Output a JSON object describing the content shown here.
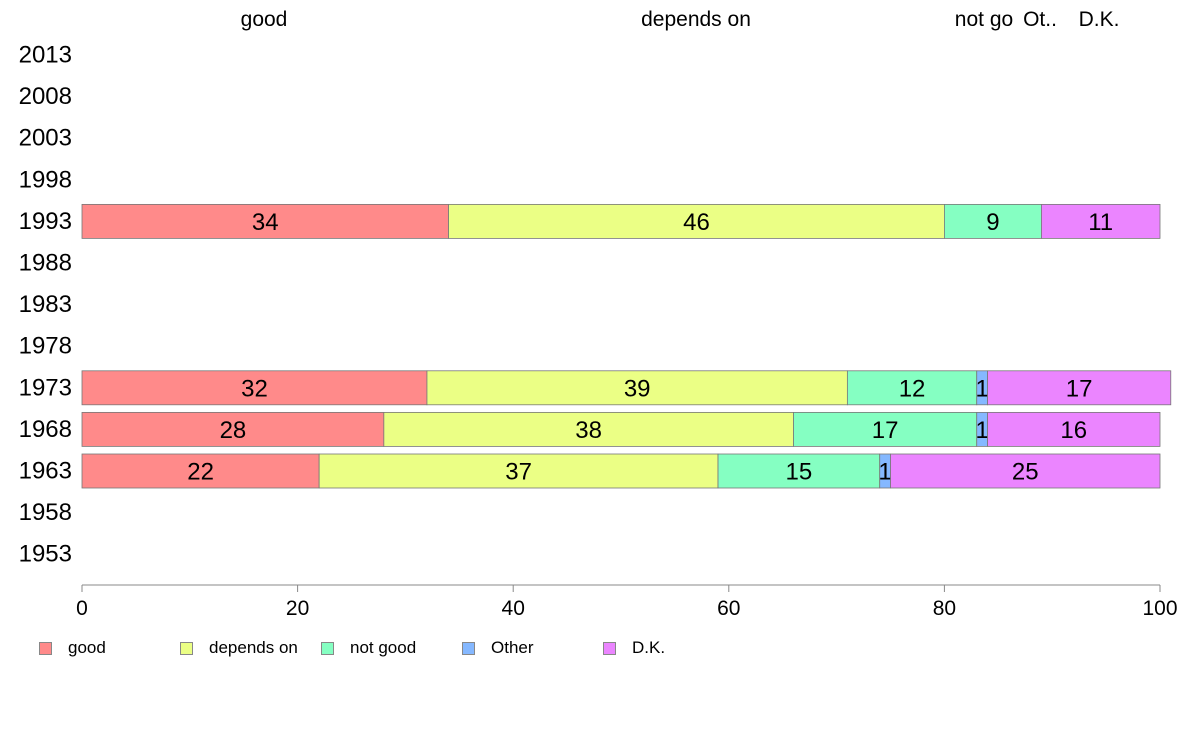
{
  "chart_data": {
    "type": "bar",
    "orientation": "horizontal",
    "stacked": true,
    "categories": [
      "2013",
      "2008",
      "2003",
      "1998",
      "1993",
      "1988",
      "1983",
      "1978",
      "1973",
      "1968",
      "1963",
      "1958",
      "1953"
    ],
    "series": [
      {
        "name": "good",
        "color": "#FF8A8A",
        "values": [
          null,
          null,
          null,
          null,
          34,
          null,
          null,
          null,
          32,
          28,
          22,
          null,
          null
        ]
      },
      {
        "name": "depends on",
        "color": "#EBFF85",
        "values": [
          null,
          null,
          null,
          null,
          46,
          null,
          null,
          null,
          39,
          38,
          37,
          null,
          null
        ]
      },
      {
        "name": "not good",
        "color": "#85FFC2",
        "values": [
          null,
          null,
          null,
          null,
          9,
          null,
          null,
          null,
          12,
          17,
          15,
          null,
          null
        ]
      },
      {
        "name": "Other",
        "color": "#85B8FF",
        "values": [
          null,
          null,
          null,
          null,
          0,
          null,
          null,
          null,
          1,
          1,
          1,
          null,
          null
        ]
      },
      {
        "name": "D.K.",
        "color": "#EB85FF",
        "values": [
          null,
          null,
          null,
          null,
          11,
          null,
          null,
          null,
          17,
          16,
          25,
          null,
          null
        ]
      }
    ],
    "data_labels": {
      "1993": [
        "34",
        "46",
        "9",
        "",
        "11"
      ],
      "1973": [
        "32",
        "39",
        "12",
        "1",
        "17"
      ],
      "1968": [
        "28",
        "38",
        "17",
        "1",
        "16"
      ],
      "1963": [
        "22",
        "37",
        "15",
        "1",
        "25"
      ]
    },
    "column_headers": [
      "good",
      "depends on",
      "not go",
      "Ot..",
      "D.K."
    ],
    "xlim": [
      0,
      100
    ],
    "xticks": [
      0,
      20,
      40,
      60,
      80,
      100
    ],
    "legend_position": "bottom"
  }
}
